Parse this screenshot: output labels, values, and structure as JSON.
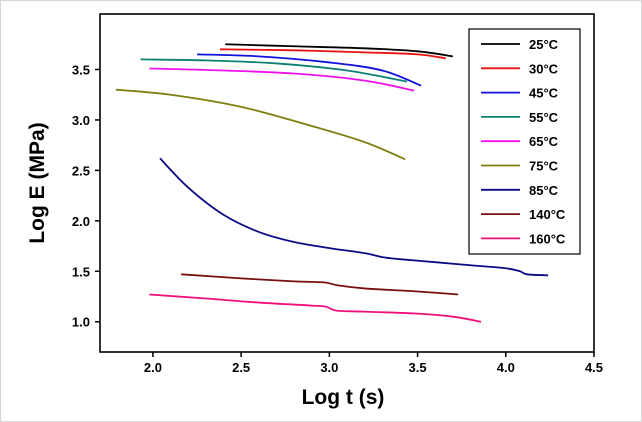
{
  "chart_data": {
    "type": "line",
    "title": "",
    "xlabel": "Log t (s)",
    "ylabel": "Log E (MPa)",
    "xlim": [
      1.7,
      4.5
    ],
    "ylim": [
      0.7,
      4.05
    ],
    "xticks": [
      "2.0",
      "2.5",
      "3.0",
      "3.5",
      "4.0",
      "4.5"
    ],
    "yticks": [
      "1.0",
      "1.5",
      "2.0",
      "2.5",
      "3.0",
      "3.5"
    ],
    "grid": false,
    "legend_position": "top-right",
    "series": [
      {
        "name": "25°C",
        "color": "#000000",
        "points": [
          [
            2.41,
            3.75
          ],
          [
            2.8,
            3.73
          ],
          [
            3.2,
            3.71
          ],
          [
            3.5,
            3.68
          ],
          [
            3.7,
            3.63
          ]
        ]
      },
      {
        "name": "30°C",
        "color": "#e8120f",
        "points": [
          [
            2.38,
            3.7
          ],
          [
            2.8,
            3.69
          ],
          [
            3.2,
            3.67
          ],
          [
            3.5,
            3.65
          ],
          [
            3.66,
            3.61
          ]
        ]
      },
      {
        "name": "45°C",
        "color": "#1010dd",
        "points": [
          [
            2.25,
            3.65
          ],
          [
            2.6,
            3.63
          ],
          [
            3.0,
            3.57
          ],
          [
            3.3,
            3.49
          ],
          [
            3.52,
            3.34
          ]
        ]
      },
      {
        "name": "55°C",
        "color": "#0b8270",
        "points": [
          [
            1.93,
            3.6
          ],
          [
            2.3,
            3.59
          ],
          [
            2.7,
            3.56
          ],
          [
            3.1,
            3.49
          ],
          [
            3.44,
            3.38
          ]
        ]
      },
      {
        "name": "65°C",
        "color": "#ee11ee",
        "points": [
          [
            1.98,
            3.51
          ],
          [
            2.4,
            3.49
          ],
          [
            2.8,
            3.46
          ],
          [
            3.2,
            3.39
          ],
          [
            3.48,
            3.29
          ]
        ]
      },
      {
        "name": "75°C",
        "color": "#7f7f10",
        "points": [
          [
            1.79,
            3.3
          ],
          [
            2.1,
            3.25
          ],
          [
            2.5,
            3.13
          ],
          [
            2.9,
            2.94
          ],
          [
            3.2,
            2.78
          ],
          [
            3.43,
            2.61
          ]
        ]
      },
      {
        "name": "85°C",
        "color": "#0a0a86",
        "points": [
          [
            2.04,
            2.62
          ],
          [
            2.2,
            2.33
          ],
          [
            2.4,
            2.06
          ],
          [
            2.6,
            1.89
          ],
          [
            2.8,
            1.79
          ],
          [
            3.0,
            1.73
          ],
          [
            3.2,
            1.68
          ],
          [
            3.3,
            1.64
          ],
          [
            3.4,
            1.62
          ],
          [
            3.6,
            1.59
          ],
          [
            3.8,
            1.56
          ],
          [
            4.0,
            1.53
          ],
          [
            4.08,
            1.5
          ],
          [
            4.12,
            1.47
          ],
          [
            4.24,
            1.46
          ]
        ]
      },
      {
        "name": "140°C",
        "color": "#7a0f0f",
        "points": [
          [
            2.16,
            1.47
          ],
          [
            2.5,
            1.43
          ],
          [
            2.8,
            1.4
          ],
          [
            2.97,
            1.39
          ],
          [
            3.05,
            1.36
          ],
          [
            3.2,
            1.33
          ],
          [
            3.5,
            1.3
          ],
          [
            3.73,
            1.27
          ]
        ]
      },
      {
        "name": "160°C",
        "color": "#f0107a",
        "points": [
          [
            1.98,
            1.27
          ],
          [
            2.3,
            1.23
          ],
          [
            2.6,
            1.19
          ],
          [
            2.9,
            1.16
          ],
          [
            2.98,
            1.15
          ],
          [
            3.04,
            1.11
          ],
          [
            3.2,
            1.1
          ],
          [
            3.5,
            1.08
          ],
          [
            3.7,
            1.05
          ],
          [
            3.86,
            1.0
          ]
        ]
      }
    ]
  }
}
